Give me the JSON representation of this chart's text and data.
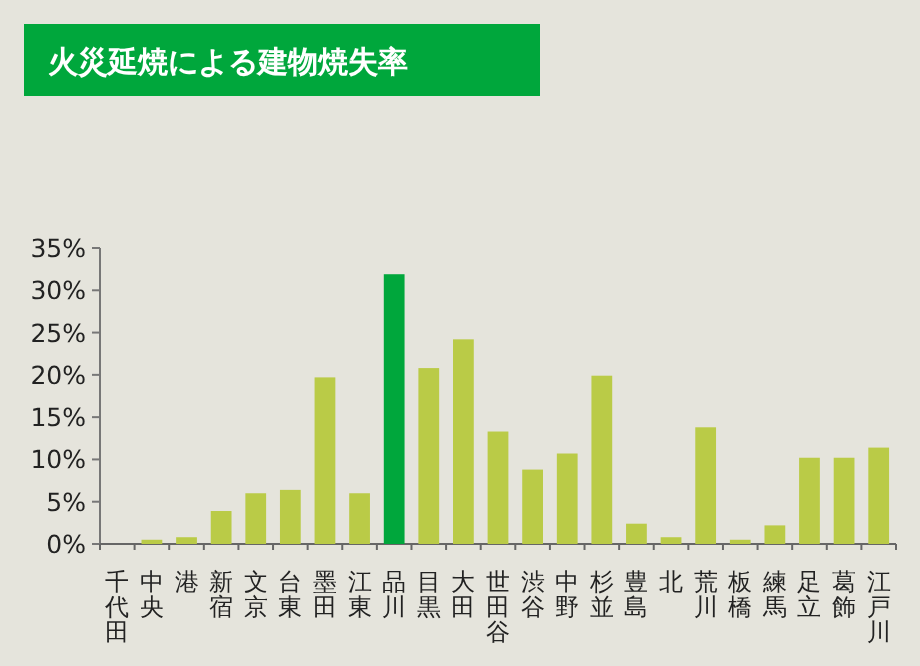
{
  "chart_data": {
    "type": "bar",
    "title": "火災延焼による建物焼失率",
    "categories": [
      "千代田",
      "中央",
      "港",
      "新宿",
      "文京",
      "台東",
      "墨田",
      "江東",
      "品川",
      "目黒",
      "大田",
      "世田谷",
      "渋谷",
      "中野",
      "杉並",
      "豊島",
      "北",
      "荒川",
      "板橋",
      "練馬",
      "足立",
      "葛飾",
      "江戸川"
    ],
    "values": [
      0,
      0.5,
      0.8,
      3.9,
      6,
      6.4,
      19.7,
      6,
      31.9,
      20.8,
      24.2,
      13.3,
      8.8,
      10.7,
      19.9,
      2.4,
      0.8,
      13.8,
      0.5,
      2.2,
      10.2,
      10.2,
      11.4
    ],
    "colors": [
      "#bacb47",
      "#bacb47",
      "#bacb47",
      "#bacb47",
      "#bacb47",
      "#bacb47",
      "#bacb47",
      "#bacb47",
      "#00a73c",
      "#bacb47",
      "#bacb47",
      "#bacb47",
      "#bacb47",
      "#bacb47",
      "#bacb47",
      "#bacb47",
      "#bacb47",
      "#bacb47",
      "#bacb47",
      "#bacb47",
      "#bacb47",
      "#bacb47",
      "#bacb47"
    ],
    "ylim": [
      0,
      35
    ],
    "yticks": [
      {
        "value": 0,
        "label": "0%"
      },
      {
        "value": 5,
        "label": "5%"
      },
      {
        "value": 10,
        "label": "10%"
      },
      {
        "value": 15,
        "label": "15%"
      },
      {
        "value": 20,
        "label": "20%"
      },
      {
        "value": 25,
        "label": "25%"
      },
      {
        "value": 30,
        "label": "30%"
      },
      {
        "value": 35,
        "label": "35%"
      }
    ],
    "grid": false
  }
}
